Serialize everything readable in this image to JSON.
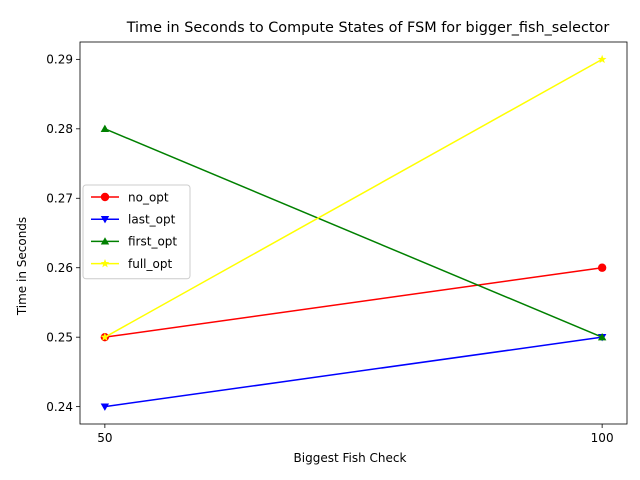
{
  "chart_data": {
    "type": "line",
    "title": "Time in Seconds to Compute States of FSM for bigger_fish_selector",
    "xlabel": "Biggest Fish Check",
    "ylabel": "Time in Seconds",
    "x": [
      50,
      100
    ],
    "x_tick_labels": [
      "50",
      "100"
    ],
    "xlim": [
      47.5,
      102.5
    ],
    "ylim": [
      0.2375,
      0.2925
    ],
    "y_ticks": [
      0.24,
      0.25,
      0.26,
      0.27,
      0.28,
      0.29
    ],
    "y_tick_labels": [
      "0.24",
      "0.25",
      "0.26",
      "0.27",
      "0.28",
      "0.29"
    ],
    "grid": false,
    "legend_position": "center-left",
    "series": [
      {
        "name": "no_opt",
        "values": [
          0.25,
          0.26
        ],
        "color": "#ff0000",
        "marker": "circle"
      },
      {
        "name": "last_opt",
        "values": [
          0.24,
          0.25
        ],
        "color": "#0000ff",
        "marker": "triangle-down"
      },
      {
        "name": "first_opt",
        "values": [
          0.28,
          0.25
        ],
        "color": "#008000",
        "marker": "triangle-up"
      },
      {
        "name": "full_opt",
        "values": [
          0.25,
          0.29
        ],
        "color": "#ffff00",
        "marker": "star"
      }
    ]
  }
}
